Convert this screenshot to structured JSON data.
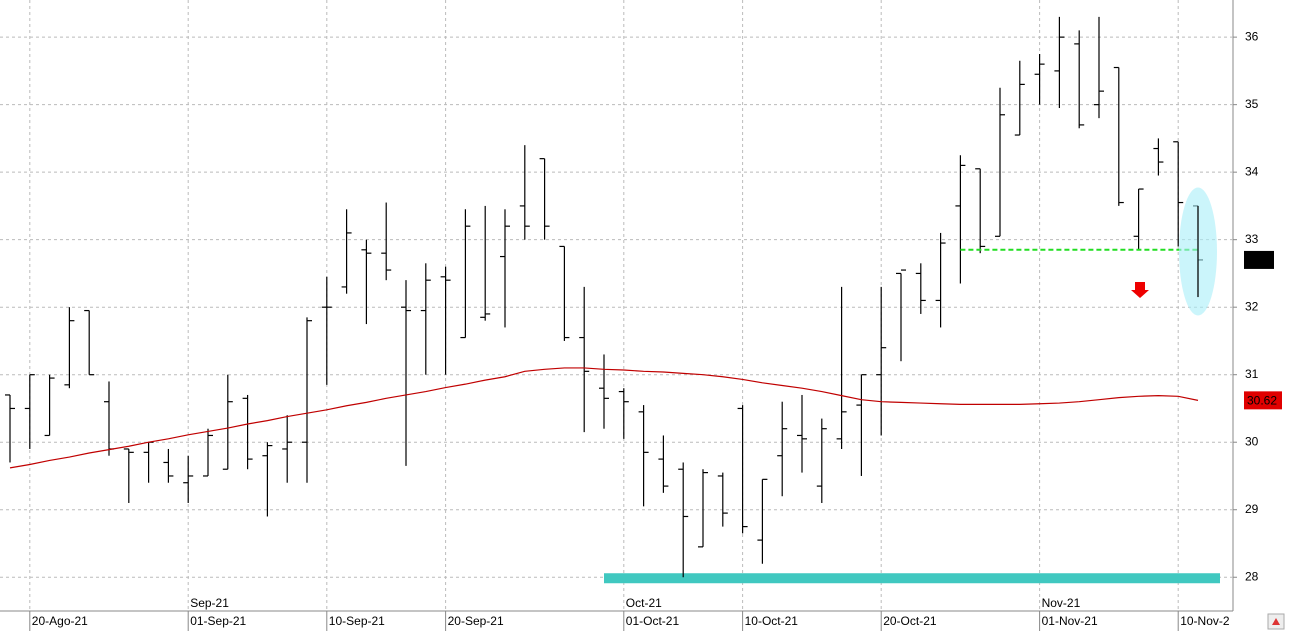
{
  "chart_data": {
    "type": "ohlc",
    "categories": [
      null,
      "20-Ago-21",
      null,
      null,
      null,
      null,
      null,
      null,
      null,
      "01-Sep-21",
      null,
      null,
      null,
      null,
      null,
      null,
      "10-Sep-21",
      null,
      null,
      null,
      null,
      null,
      "20-Sep-21",
      null,
      null,
      null,
      null,
      null,
      null,
      null,
      null,
      "01-Oct-21",
      null,
      null,
      null,
      null,
      null,
      "10-Oct-21",
      null,
      null,
      null,
      null,
      null,
      null,
      "20-Oct-21",
      null,
      null,
      null,
      null,
      null,
      null,
      null,
      "01-Nov-21",
      null,
      null,
      null,
      null,
      null,
      null,
      "10-Nov-2",
      null
    ],
    "month_labels": [
      null,
      null,
      null,
      null,
      null,
      null,
      null,
      null,
      null,
      "Sep-21",
      null,
      null,
      null,
      null,
      null,
      null,
      null,
      null,
      null,
      null,
      null,
      null,
      null,
      null,
      null,
      null,
      null,
      null,
      null,
      null,
      null,
      "Oct-21",
      null,
      null,
      null,
      null,
      null,
      null,
      null,
      null,
      null,
      null,
      null,
      null,
      null,
      null,
      null,
      null,
      null,
      null,
      null,
      null,
      "Nov-21",
      null,
      null,
      null,
      null,
      null,
      null,
      null,
      null
    ],
    "color": "#000000",
    "open": [
      30.7,
      30.5,
      30.1,
      30.85,
      31.95,
      30.6,
      29.9,
      29.85,
      29.7,
      29.4,
      29.5,
      29.6,
      30.65,
      29.8,
      29.9,
      30.0,
      32.0,
      32.3,
      32.85,
      32.8,
      32.0,
      31.95,
      32.45,
      31.55,
      31.85,
      32.75,
      33.5,
      34.2,
      32.9,
      31.55,
      30.8,
      30.75,
      30.45,
      29.75,
      29.6,
      28.45,
      29.5,
      30.5,
      28.55,
      29.8,
      30.1,
      29.35,
      30.05,
      30.55,
      31.0,
      32.5,
      32.5,
      32.1,
      33.5,
      34.05,
      33.05,
      34.55,
      35.45,
      35.5,
      35.9,
      35.0,
      35.55,
      33.05,
      34.35,
      34.45,
      33.5
    ],
    "high": [
      30.7,
      31.0,
      31.0,
      32.0,
      31.95,
      30.9,
      29.9,
      30.0,
      29.9,
      29.8,
      30.2,
      31.0,
      30.7,
      30.0,
      30.4,
      31.85,
      32.45,
      33.45,
      33.0,
      33.55,
      32.4,
      32.65,
      32.6,
      33.45,
      33.5,
      33.45,
      34.4,
      34.2,
      32.9,
      32.3,
      31.3,
      30.8,
      30.55,
      30.1,
      29.7,
      29.6,
      29.55,
      30.55,
      29.45,
      30.6,
      30.7,
      30.35,
      32.3,
      31.0,
      32.3,
      32.5,
      32.65,
      33.1,
      34.25,
      34.05,
      35.25,
      35.65,
      35.75,
      36.3,
      36.1,
      36.3,
      35.55,
      33.75,
      34.5,
      34.45,
      33.5
    ],
    "low": [
      29.7,
      29.9,
      30.1,
      30.8,
      31.0,
      29.8,
      29.1,
      29.4,
      29.4,
      29.1,
      29.5,
      29.6,
      29.6,
      28.9,
      29.4,
      29.4,
      30.85,
      32.2,
      31.75,
      32.4,
      29.65,
      31.0,
      31.0,
      31.55,
      31.8,
      31.7,
      33.0,
      33.0,
      31.5,
      30.15,
      30.2,
      30.05,
      29.05,
      29.25,
      28.0,
      28.45,
      28.75,
      28.65,
      28.2,
      29.2,
      29.55,
      29.1,
      29.9,
      29.5,
      30.1,
      31.2,
      31.9,
      31.7,
      32.35,
      32.8,
      33.05,
      34.55,
      35.0,
      34.95,
      34.65,
      34.8,
      33.5,
      32.85,
      33.95,
      32.9,
      32.15
    ],
    "close": [
      30.5,
      31.0,
      30.95,
      31.8,
      31.0,
      29.9,
      29.85,
      30.0,
      29.5,
      29.5,
      30.1,
      30.6,
      29.75,
      29.95,
      30.0,
      31.8,
      32.0,
      33.1,
      32.8,
      32.55,
      31.95,
      32.4,
      32.4,
      33.2,
      31.9,
      33.2,
      33.2,
      33.2,
      31.55,
      31.05,
      30.65,
      30.6,
      29.85,
      29.35,
      28.9,
      29.55,
      28.95,
      28.75,
      29.45,
      30.2,
      30.05,
      30.2,
      30.45,
      31.0,
      31.4,
      32.55,
      32.1,
      32.95,
      34.1,
      32.9,
      34.85,
      35.3,
      35.6,
      36.0,
      34.7,
      35.2,
      33.55,
      33.75,
      34.15,
      33.55,
      32.7
    ],
    "ma": {
      "color": "#c00000",
      "values": [
        29.62,
        29.67,
        29.73,
        29.78,
        29.84,
        29.89,
        29.94,
        30.0,
        30.05,
        30.11,
        30.16,
        30.21,
        30.27,
        30.32,
        30.38,
        30.43,
        30.48,
        30.54,
        30.59,
        30.65,
        30.7,
        30.75,
        30.81,
        30.86,
        30.92,
        30.97,
        31.05,
        31.08,
        31.1,
        31.1,
        31.08,
        31.07,
        31.05,
        31.04,
        31.02,
        31.0,
        30.97,
        30.93,
        30.88,
        30.84,
        30.8,
        30.75,
        30.69,
        30.63,
        30.6,
        30.59,
        30.58,
        30.57,
        30.56,
        30.56,
        30.56,
        30.56,
        30.57,
        30.58,
        30.6,
        30.63,
        30.66,
        30.68,
        30.69,
        30.68,
        30.62
      ],
      "value_label": "30.62"
    },
    "support": {
      "value": 28,
      "color": "#40c8c0"
    },
    "resistance": {
      "value": 32.85,
      "color": "#22dd22"
    },
    "ylim": [
      27.5,
      36.55
    ],
    "yticks": [
      28,
      29,
      30,
      31,
      32,
      33,
      34,
      35,
      36
    ],
    "grid": true
  }
}
